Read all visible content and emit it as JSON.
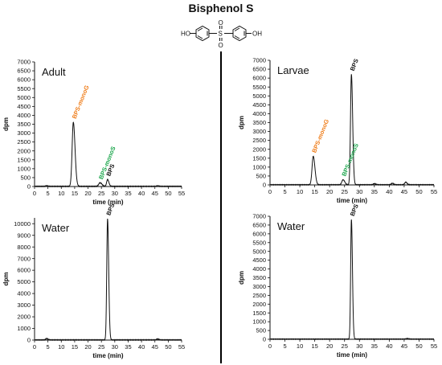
{
  "figure": {
    "title": "Bisphenol S",
    "molecule_labels": [
      "HO",
      "S",
      "O",
      "O",
      "OH"
    ]
  },
  "colors": {
    "orange": "#ef7d1a",
    "green": "#1aa54b",
    "black": "#111111"
  },
  "chart_data": [
    {
      "type": "line",
      "panel_label": "Adult",
      "xlabel": "time (min)",
      "ylabel": "dpm",
      "xlim": [
        0,
        55
      ],
      "ylim": [
        0,
        7000
      ],
      "xticks": [
        0,
        5,
        10,
        15,
        20,
        25,
        30,
        35,
        40,
        45,
        50,
        55
      ],
      "yticks": [
        0,
        500,
        1000,
        1500,
        2000,
        2500,
        3000,
        3500,
        4000,
        4500,
        5000,
        5500,
        6000,
        6500,
        7000
      ],
      "grid": false,
      "peaks": [
        {
          "label": "BPS-monoG",
          "x": 14.5,
          "height": 3600,
          "width": 0.45,
          "color": "orange"
        },
        {
          "label": "BPS-monoS",
          "x": 24.5,
          "height": 200,
          "width": 0.5,
          "color": "green"
        },
        {
          "label": "BPS",
          "x": 27.3,
          "height": 380,
          "width": 0.35,
          "color": "black"
        }
      ],
      "minor_peaks": [
        {
          "x": 4.5,
          "height": 30
        },
        {
          "x": 46,
          "height": 25
        }
      ]
    },
    {
      "type": "line",
      "panel_label": "Larvae",
      "xlabel": "time (min)",
      "ylabel": "dpm",
      "xlim": [
        0,
        55
      ],
      "ylim": [
        0,
        7000
      ],
      "xticks": [
        0,
        5,
        10,
        15,
        20,
        25,
        30,
        35,
        40,
        45,
        50,
        55
      ],
      "yticks": [
        0,
        500,
        1000,
        1500,
        2000,
        2500,
        3000,
        3500,
        4000,
        4500,
        5000,
        5500,
        6000,
        6500,
        7000
      ],
      "grid": false,
      "peaks": [
        {
          "label": "BPS-monoG",
          "x": 14.5,
          "height": 1600,
          "width": 0.4,
          "color": "orange"
        },
        {
          "label": "BPS-monoS",
          "x": 24.5,
          "height": 280,
          "width": 0.4,
          "color": "green"
        },
        {
          "label": "BPS",
          "x": 27.3,
          "height": 6200,
          "width": 0.3,
          "color": "black"
        }
      ],
      "minor_peaks": [
        {
          "x": 35,
          "height": 60
        },
        {
          "x": 41,
          "height": 80
        },
        {
          "x": 45.5,
          "height": 140
        }
      ]
    },
    {
      "type": "line",
      "panel_label": "Water",
      "xlabel": "time (min)",
      "ylabel": "dpm",
      "xlim": [
        0,
        55
      ],
      "ylim": [
        0,
        10500
      ],
      "xticks": [
        0,
        5,
        10,
        15,
        20,
        25,
        30,
        35,
        40,
        45,
        50,
        55
      ],
      "yticks": [
        0,
        1000,
        2000,
        3000,
        4000,
        5000,
        6000,
        7000,
        8000,
        9000,
        10000
      ],
      "grid": false,
      "peaks": [
        {
          "label": "BPS",
          "x": 27.3,
          "height": 10400,
          "width": 0.3,
          "color": "black"
        }
      ],
      "minor_peaks": [
        {
          "x": 4.5,
          "height": 120
        },
        {
          "x": 46,
          "height": 80
        }
      ]
    },
    {
      "type": "line",
      "panel_label": "Water",
      "xlabel": "time (min)",
      "ylabel": "dpm",
      "xlim": [
        0,
        55
      ],
      "ylim": [
        0,
        7000
      ],
      "xticks": [
        0,
        5,
        10,
        15,
        20,
        25,
        30,
        35,
        40,
        45,
        50,
        55
      ],
      "yticks": [
        0,
        500,
        1000,
        1500,
        2000,
        2500,
        3000,
        3500,
        4000,
        4500,
        5000,
        5500,
        6000,
        6500,
        7000
      ],
      "grid": false,
      "peaks": [
        {
          "label": "BPS",
          "x": 27.3,
          "height": 6800,
          "width": 0.25,
          "color": "black"
        }
      ],
      "minor_peaks": [
        {
          "x": 46,
          "height": 30
        }
      ]
    }
  ]
}
